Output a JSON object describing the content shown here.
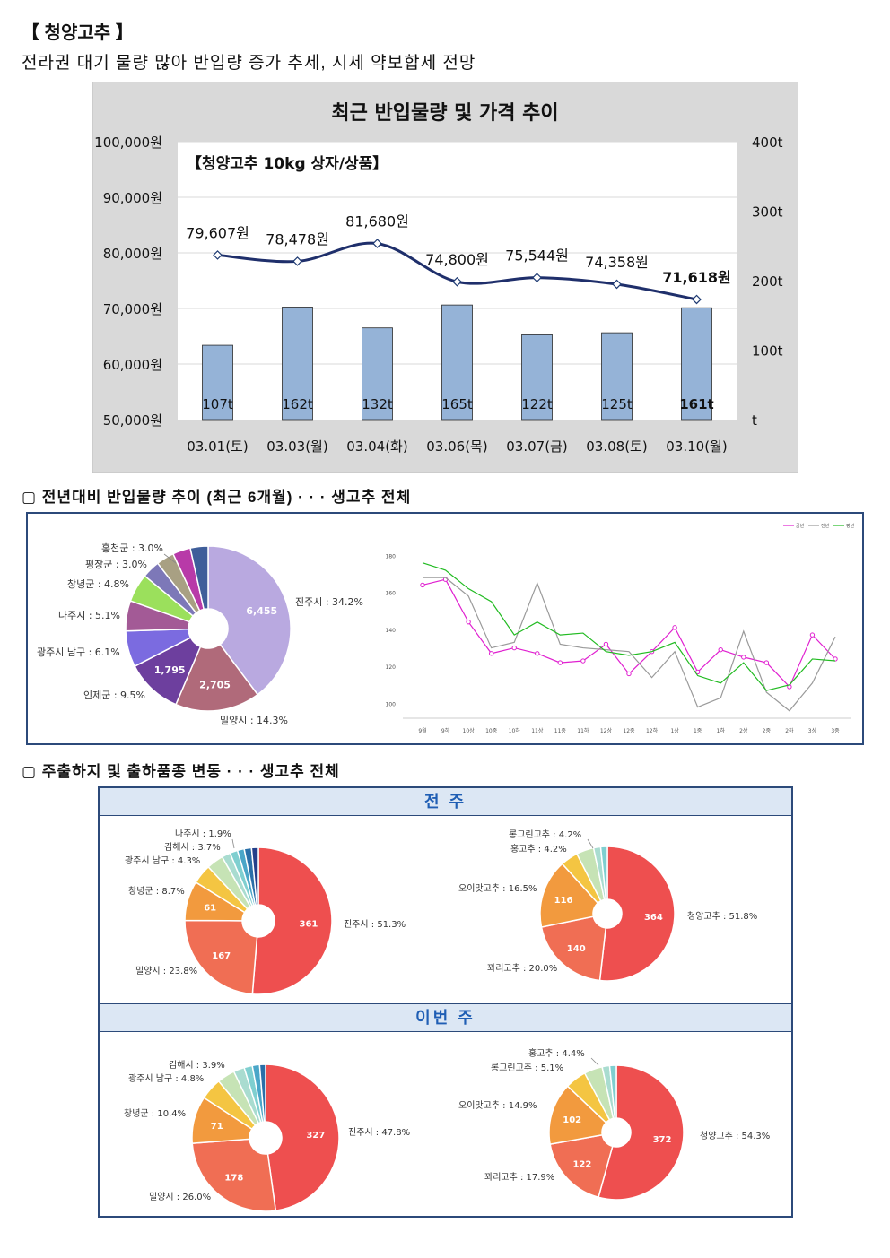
{
  "header": {
    "title": "【 청양고추 】",
    "subtitle": "전라권 대기 물량 많아 반입량 증가 추세, 시세 약보합세 전망"
  },
  "chart_data": [
    {
      "type": "bar+line",
      "title": "최근 반입물량 및 가격 추이",
      "subtitle": "【청양고추 10kg 상자/상품】",
      "categories": [
        "03.01(토)",
        "03.03(월)",
        "03.04(화)",
        "03.06(목)",
        "03.07(금)",
        "03.08(토)",
        "03.10(월)"
      ],
      "bar_series": {
        "unit": "t",
        "values": [
          107,
          162,
          132,
          165,
          122,
          125,
          161
        ],
        "color": "#95b3d7"
      },
      "line_series": {
        "unit": "원",
        "values": [
          79607,
          78478,
          81680,
          74800,
          75544,
          74358,
          71618
        ],
        "color": "#1f2f6b"
      },
      "price_labels": [
        "79,607원",
        "78,478원",
        "81,680원",
        "74,800원",
        "75,544원",
        "74,358원",
        "71,618원"
      ],
      "volume_labels": [
        "107t",
        "162t",
        "132t",
        "165t",
        "122t",
        "125t",
        "161t"
      ],
      "y_left": {
        "range": [
          50000,
          100000
        ],
        "ticks": [
          "50,000원",
          "60,000원",
          "70,000원",
          "80,000원",
          "90,000원",
          "100,000원"
        ]
      },
      "y_right": {
        "range": [
          0,
          400
        ],
        "ticks": [
          "t",
          "100t",
          "200t",
          "300t",
          "400t"
        ]
      },
      "grid": true
    },
    {
      "type": "pie",
      "title": "전년대비 반입물량 추이 (최근 6개월) · · · 생고추 전체",
      "slices": [
        {
          "label": "진주시 : 34.2%",
          "value": 34.2,
          "inner": "6,455",
          "color": "#b9a9e0"
        },
        {
          "label": "밀양시 : 14.3%",
          "value": 14.3,
          "inner": "2,705",
          "color": "#b06a7a"
        },
        {
          "label": "인제군 : 9.5%",
          "value": 9.5,
          "inner": "1,795",
          "color": "#6d3f9e"
        },
        {
          "label": "광주시 남구 : 6.1%",
          "value": 6.1,
          "inner": "",
          "color": "#7b6be0"
        },
        {
          "label": "나주시 : 5.1%",
          "value": 5.1,
          "inner": "",
          "color": "#a35a96"
        },
        {
          "label": "창녕군 : 4.8%",
          "value": 4.8,
          "inner": "",
          "color": "#9be05c"
        },
        {
          "label": "평창군 : 3.0%",
          "value": 3.0,
          "inner": "",
          "color": "#7d78b8"
        },
        {
          "label": "홍천군 : 3.0%",
          "value": 3.0,
          "inner": "",
          "color": "#a8a083"
        },
        {
          "label": "",
          "value": 3.0,
          "inner": "",
          "color": "#b83aa8"
        },
        {
          "label": "",
          "value": 3.0,
          "inner": "",
          "color": "#3f5e9a"
        }
      ]
    },
    {
      "type": "line",
      "legend": [
        "금년",
        "전년",
        "평년"
      ],
      "legend_position": "top-right",
      "x": [
        "9월",
        "9하",
        "10상",
        "10중",
        "10하",
        "11상",
        "11중",
        "11하",
        "12상",
        "12중",
        "12하",
        "1상",
        "1중",
        "1하",
        "2상",
        "2중",
        "2하",
        "3상",
        "3중"
      ],
      "y_ticks": [
        "100",
        "120",
        "140",
        "160",
        "180"
      ],
      "ylim": [
        92,
        186
      ],
      "reference_line": 131,
      "series": [
        {
          "name": "금년",
          "color": "#e020d0",
          "values": [
            164,
            167,
            144,
            127,
            130,
            127,
            122,
            123,
            132,
            116,
            128,
            141,
            117,
            129,
            125,
            122,
            109,
            137,
            124
          ]
        },
        {
          "name": "전년",
          "color": "#9a9a9a",
          "values": [
            168,
            168,
            158,
            130,
            133,
            165,
            132,
            130,
            129,
            128,
            114,
            128,
            98,
            103,
            139,
            106,
            96,
            111,
            136
          ]
        },
        {
          "name": "평년",
          "color": "#22bb22",
          "values": [
            176,
            172,
            162,
            155,
            137,
            144,
            137,
            138,
            128,
            126,
            128,
            133,
            115,
            111,
            122,
            107,
            110,
            124,
            123
          ]
        }
      ]
    },
    {
      "type": "pie",
      "group": "전 주",
      "title": "주출하지 및 출하품종 변동 · · · 생고추 전체",
      "slices": [
        {
          "label": "진주시 : 51.3%",
          "value": 51.3,
          "inner": "361",
          "color": "#ee4f4f"
        },
        {
          "label": "밀양시 : 23.8%",
          "value": 23.8,
          "inner": "167",
          "color": "#f06e54"
        },
        {
          "label": "창녕군 : 8.7%",
          "value": 8.7,
          "inner": "61",
          "color": "#f29a3e"
        },
        {
          "label": "광주시 남구 : 4.3%",
          "value": 4.3,
          "inner": "",
          "color": "#f4c542"
        },
        {
          "label": "김해시 : 3.7%",
          "value": 3.7,
          "inner": "",
          "color": "#c6e3b5"
        },
        {
          "label": "나주시 : 1.9%",
          "value": 1.9,
          "inner": "",
          "color": "#a9dcd0"
        },
        {
          "label": "",
          "value": 1.7,
          "inner": "",
          "color": "#7fcfd0"
        },
        {
          "label": "",
          "value": 1.5,
          "inner": "",
          "color": "#4aa6c8"
        },
        {
          "label": "",
          "value": 1.6,
          "inner": "",
          "color": "#2a6fa8"
        },
        {
          "label": "",
          "value": 1.5,
          "inner": "",
          "color": "#24408a"
        }
      ]
    },
    {
      "type": "pie",
      "group": "전 주",
      "slices": [
        {
          "label": "청양고추 : 51.8%",
          "value": 51.8,
          "inner": "364",
          "color": "#ee4f4f"
        },
        {
          "label": "꽈리고추 : 20.0%",
          "value": 20.0,
          "inner": "140",
          "color": "#f06e54"
        },
        {
          "label": "오이맛고추 : 16.5%",
          "value": 16.5,
          "inner": "116",
          "color": "#f29a3e"
        },
        {
          "label": "홍고추 : 4.2%",
          "value": 4.2,
          "inner": "",
          "color": "#f4c542"
        },
        {
          "label": "롱그린고추 : 4.2%",
          "value": 4.2,
          "inner": "",
          "color": "#c6e3b5"
        },
        {
          "label": "",
          "value": 1.7,
          "inner": "",
          "color": "#a9dcd0"
        },
        {
          "label": "",
          "value": 1.6,
          "inner": "",
          "color": "#7fcfd0"
        }
      ]
    },
    {
      "type": "pie",
      "group": "이번 주",
      "slices": [
        {
          "label": "진주시 : 47.8%",
          "value": 47.8,
          "inner": "327",
          "color": "#ee4f4f"
        },
        {
          "label": "밀양시 : 26.0%",
          "value": 26.0,
          "inner": "178",
          "color": "#f06e54"
        },
        {
          "label": "창녕군 : 10.4%",
          "value": 10.4,
          "inner": "71",
          "color": "#f29a3e"
        },
        {
          "label": "광주시 남구 : 4.8%",
          "value": 4.8,
          "inner": "",
          "color": "#f4c542"
        },
        {
          "label": "김해시 : 3.9%",
          "value": 3.9,
          "inner": "",
          "color": "#c6e3b5"
        },
        {
          "label": "",
          "value": 2.4,
          "inner": "",
          "color": "#a9dcd0"
        },
        {
          "label": "",
          "value": 1.8,
          "inner": "",
          "color": "#7fcfd0"
        },
        {
          "label": "",
          "value": 1.6,
          "inner": "",
          "color": "#4aa6c8"
        },
        {
          "label": "",
          "value": 1.3,
          "inner": "",
          "color": "#2a6fa8"
        }
      ]
    },
    {
      "type": "pie",
      "group": "이번 주",
      "slices": [
        {
          "label": "청양고추 : 54.3%",
          "value": 54.3,
          "inner": "372",
          "color": "#ee4f4f"
        },
        {
          "label": "꽈리고추 : 17.9%",
          "value": 17.9,
          "inner": "122",
          "color": "#f06e54"
        },
        {
          "label": "오이맛고추 : 14.9%",
          "value": 14.9,
          "inner": "102",
          "color": "#f29a3e"
        },
        {
          "label": "롱그린고추 : 5.1%",
          "value": 5.1,
          "inner": "",
          "color": "#f4c542"
        },
        {
          "label": "홍고추 : 4.4%",
          "value": 4.4,
          "inner": "",
          "color": "#c6e3b5"
        },
        {
          "label": "",
          "value": 1.8,
          "inner": "",
          "color": "#a9dcd0"
        },
        {
          "label": "",
          "value": 1.6,
          "inner": "",
          "color": "#7fcfd0"
        }
      ]
    }
  ],
  "sections": {
    "s1": "▢ 전년대비 반입물량 추이 (최근 6개월) · · · 생고추 전체",
    "s2": "▢ 주출하지 및 출하품종 변동 · · · 생고추 전체",
    "prev_week": "전 주",
    "this_week": "이번 주"
  }
}
